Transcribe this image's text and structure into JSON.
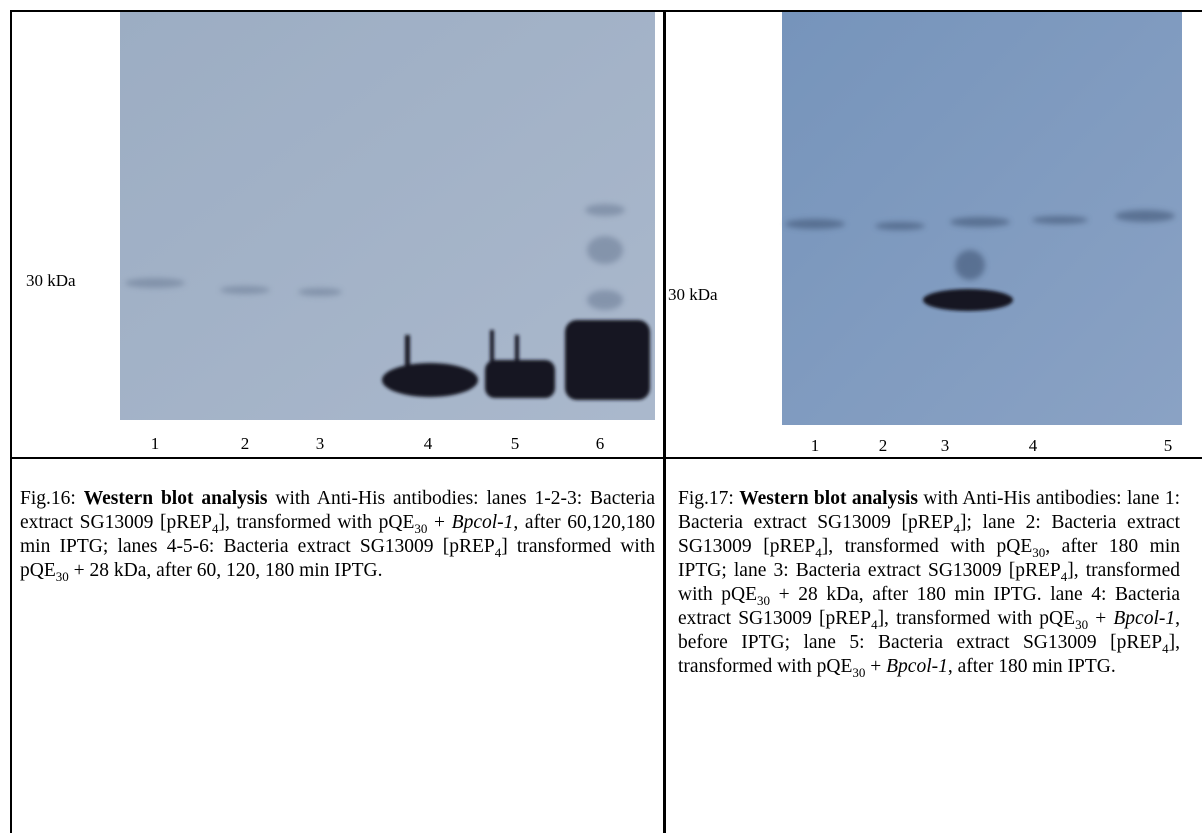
{
  "figures": [
    {
      "marker": "30 kDa",
      "lanes": [
        "1",
        "2",
        "3",
        "4",
        "5",
        "6"
      ],
      "caption": [
        {
          "text": "Fig.16: "
        },
        {
          "text": "Western blot analysis",
          "style": "bold"
        },
        {
          "text": " with Anti-His antibodies: lanes 1-2-3: Bacteria extract SG13009 [pREP"
        },
        {
          "text": "4",
          "style": "sub"
        },
        {
          "text": "], transformed with pQE"
        },
        {
          "text": "30",
          "style": "sub"
        },
        {
          "text": " + "
        },
        {
          "text": "Bpcol-1",
          "style": "italic"
        },
        {
          "text": ", after 60,120,180 min IPTG; lanes 4-5-6: Bacteria extract SG13009 [pREP"
        },
        {
          "text": "4",
          "style": "sub"
        },
        {
          "text": "] transformed with pQE"
        },
        {
          "text": "30",
          "style": "sub"
        },
        {
          "text": " + 28 kDa, after 60, 120, 180 min IPTG."
        }
      ]
    },
    {
      "marker": "30 kDa",
      "lanes": [
        "1",
        "2",
        "3",
        "4",
        "5"
      ],
      "caption": [
        {
          "text": "Fig.17: "
        },
        {
          "text": "Western blot analysis",
          "style": "bold"
        },
        {
          "text": " with Anti-His antibodies: lane 1: Bacteria extract SG13009 [pREP"
        },
        {
          "text": "4",
          "style": "sub"
        },
        {
          "text": "]; lane 2: Bacteria extract SG13009 [pREP"
        },
        {
          "text": "4",
          "style": "sub"
        },
        {
          "text": "], transformed with pQE"
        },
        {
          "text": "30",
          "style": "sub"
        },
        {
          "text": ", after 180 min IPTG; lane 3: Bacteria extract SG13009 [pREP"
        },
        {
          "text": "4",
          "style": "sub"
        },
        {
          "text": "], transformed with pQE"
        },
        {
          "text": "30",
          "style": "sub"
        },
        {
          "text": " + 28 kDa, after 180 min IPTG. lane 4: Bacteria extract SG13009 [pREP"
        },
        {
          "text": "4",
          "style": "sub"
        },
        {
          "text": "], transformed with pQE"
        },
        {
          "text": "30",
          "style": "sub"
        },
        {
          "text": " + "
        },
        {
          "text": "Bpcol-1",
          "style": "italic"
        },
        {
          "text": ", before IPTG; lane 5: Bacteria extract SG13009 [pREP"
        },
        {
          "text": "4",
          "style": "sub"
        },
        {
          "text": "], transformed with pQE"
        },
        {
          "text": "30",
          "style": "sub"
        },
        {
          "text": " + "
        },
        {
          "text": "Bpcol-1",
          "style": "italic"
        },
        {
          "text": ", after 180 min IPTG."
        }
      ]
    }
  ]
}
